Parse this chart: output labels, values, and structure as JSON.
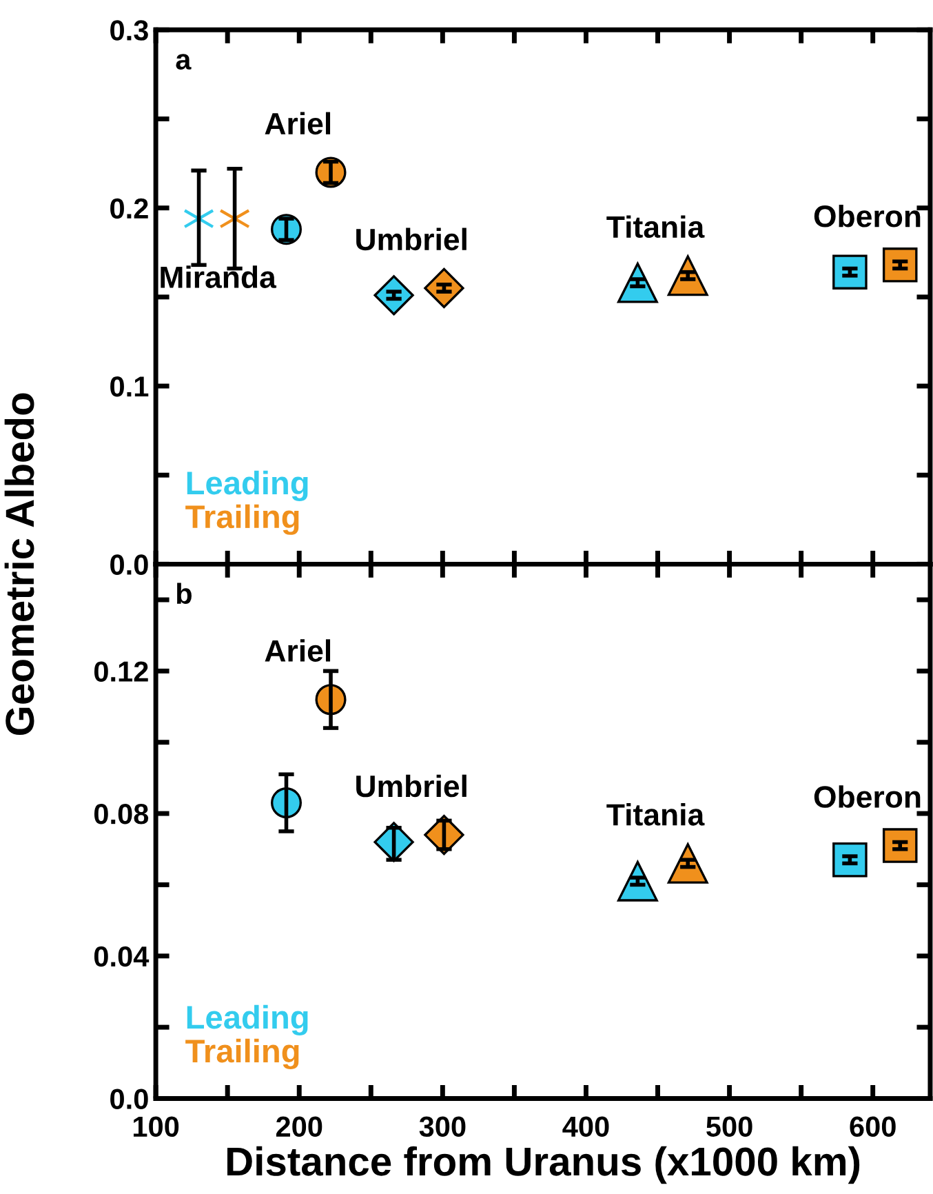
{
  "chart_data": [
    {
      "type": "scatter",
      "ylabel": "Geometric Albedo",
      "xlim": [
        100,
        640
      ],
      "ylim": [
        0,
        0.3
      ],
      "xticks": [
        {
          "value": 100,
          "label": null
        },
        {
          "value": 150,
          "label": null
        },
        {
          "value": 200,
          "label": null
        },
        {
          "value": 250,
          "label": null
        },
        {
          "value": 300,
          "label": null
        },
        {
          "value": 350,
          "label": null
        },
        {
          "value": 400,
          "label": null
        },
        {
          "value": 450,
          "label": null
        },
        {
          "value": 500,
          "label": null
        },
        {
          "value": 550,
          "label": null
        },
        {
          "value": 600,
          "label": null
        }
      ],
      "yticks": [
        {
          "value": 0,
          "label": "0.0"
        },
        {
          "value": 0.05,
          "label": null
        },
        0.1,
        {
          "value": 0.15,
          "label": null
        },
        0.2,
        {
          "value": 0.25,
          "label": null
        },
        0.3
      ],
      "tick_labels": "y",
      "legend": "bottom left",
      "grid": false,
      "series": [
        {
          "name": "Leading",
          "color": "#33ccee",
          "x": [
            130,
            191,
            266,
            436,
            584
          ],
          "values": [
            0.194,
            0.188,
            0.151,
            0.158,
            0.164
          ],
          "errors": [
            [
              0.168,
              0.221
            ],
            0.006,
            0.002,
            0.002,
            0.002
          ],
          "marker": [
            "cross",
            "circle",
            "diamond",
            "triangle",
            "square"
          ]
        },
        {
          "name": "Trailing",
          "color": "#f0901c",
          "x": [
            155,
            222,
            301,
            471,
            619
          ],
          "values": [
            0.194,
            0.22,
            0.155,
            0.162,
            0.168
          ],
          "errors": [
            [
              0.166,
              0.222
            ],
            0.006,
            0.002,
            0.002,
            0.002
          ],
          "marker": [
            "cross",
            "circle",
            "diamond",
            "triangle",
            "square"
          ]
        }
      ],
      "annotations": [
        "a",
        {
          "text": "Miranda",
          "x": 155,
          "y": 0.194
        },
        {
          "text": "Ariel",
          "x": 222,
          "y": 0.22
        },
        {
          "text": "Umbriel",
          "x": 301,
          "y": 0.155
        },
        {
          "text": "Titania",
          "x": 471,
          "y": 0.162
        },
        {
          "text": "Oberon",
          "x": 619,
          "y": 0.168
        }
      ]
    },
    {
      "type": "scatter",
      "xlabel": "Distance from Uranus (x1000 km)",
      "xlim": [
        100,
        640
      ],
      "ylim": [
        0,
        0.15
      ],
      "xticks": [
        100,
        {
          "value": 150,
          "label": null
        },
        200,
        {
          "value": 250,
          "label": null
        },
        300,
        {
          "value": 350,
          "label": null
        },
        400,
        {
          "value": 450,
          "label": null
        },
        500,
        {
          "value": 550,
          "label": null
        },
        600
      ],
      "yticks": [
        {
          "value": 0,
          "label": "0.0"
        },
        {
          "value": 0.02,
          "label": null
        },
        0.04,
        {
          "value": 0.06,
          "label": null
        },
        0.08,
        {
          "value": 0.1,
          "label": null
        },
        0.12,
        {
          "value": 0.14,
          "label": null
        }
      ],
      "legend": "bottom left",
      "grid": false,
      "series": [
        {
          "name": "Leading",
          "color": "#33ccee",
          "x": [
            191,
            266,
            436,
            584
          ],
          "values": [
            0.083,
            0.072,
            0.061,
            0.067
          ],
          "errors": [
            [
              0.075,
              0.091
            ],
            [
              0.067,
              0.076
            ],
            0.001,
            0.001
          ],
          "marker": [
            "circle",
            "diamond",
            "triangle",
            "square"
          ]
        },
        {
          "name": "Trailing",
          "color": "#f0901c",
          "x": [
            222,
            301,
            471,
            619
          ],
          "values": [
            0.112,
            0.074,
            0.066,
            0.071
          ],
          "errors": [
            [
              0.104,
              0.12
            ],
            [
              0.07,
              0.078
            ],
            0.001,
            0.001
          ],
          "marker": [
            "circle",
            "diamond",
            "triangle",
            "square"
          ]
        }
      ],
      "annotations": [
        "b",
        {
          "text": "Ariel",
          "x": 222,
          "y": 0.112
        },
        {
          "text": "Umbriel",
          "x": 301,
          "y": 0.074
        },
        {
          "text": "Titania",
          "x": 471,
          "y": 0.066
        },
        {
          "text": "Oberon",
          "x": 619,
          "y": 0.071
        }
      ]
    }
  ]
}
